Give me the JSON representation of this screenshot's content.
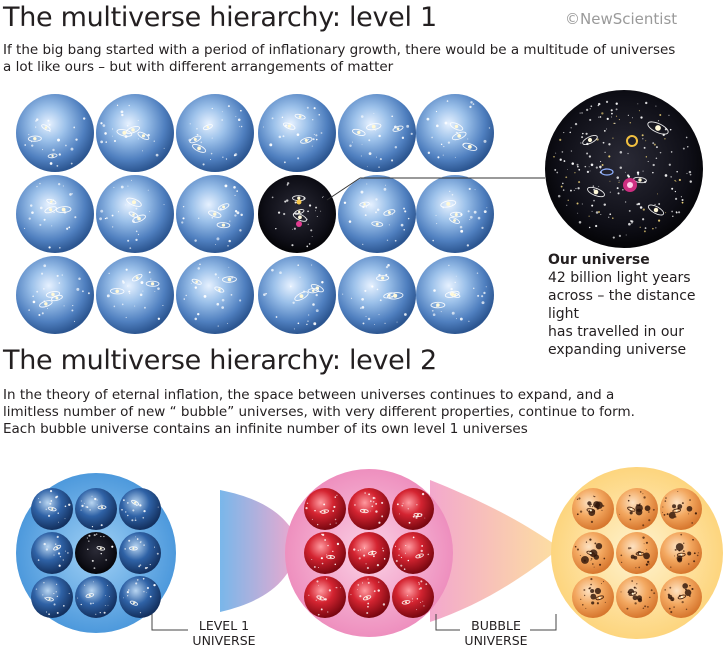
{
  "brand": "©NewScientist",
  "level1": {
    "title": "The multiverse hierarchy: level 1",
    "description_line1": "If the big bang started with a period of inflationary growth, there would be a multitude of universes",
    "description_line2": "a lot like ours – but with different arrangements of matter"
  },
  "our_universe": {
    "heading": "Our universe",
    "line1": "42 billion light years",
    "line2": "across – the distance light",
    "line3": "has travelled in our",
    "line4": "expanding universe"
  },
  "level2": {
    "title": "The multiverse hierarchy: level 2",
    "description_line1": "In the theory of eternal inflation, the space between universes continues to expand, and a",
    "description_line2": "limitless number of new “ bubble” universes, with very different properties, continue to form.",
    "description_line3": "Each bubble universe contains an infinite number of its own level 1 universes"
  },
  "callouts": {
    "level1_line1": "LEVEL 1",
    "level1_line2": "UNIVERSE",
    "bubble_line1": "BUBBLE",
    "bubble_line2": "UNIVERSE"
  },
  "colors": {
    "grid_sphere": "#5d88c4",
    "dark_sphere": "#0b0b14",
    "bubble_blue": "#6aaee6",
    "bubble_pink": "#f4a9cc",
    "bubble_yellow": "#ffe2a0",
    "red_universe": "#c41e2a",
    "orange_universe": "#ef9a4a"
  }
}
